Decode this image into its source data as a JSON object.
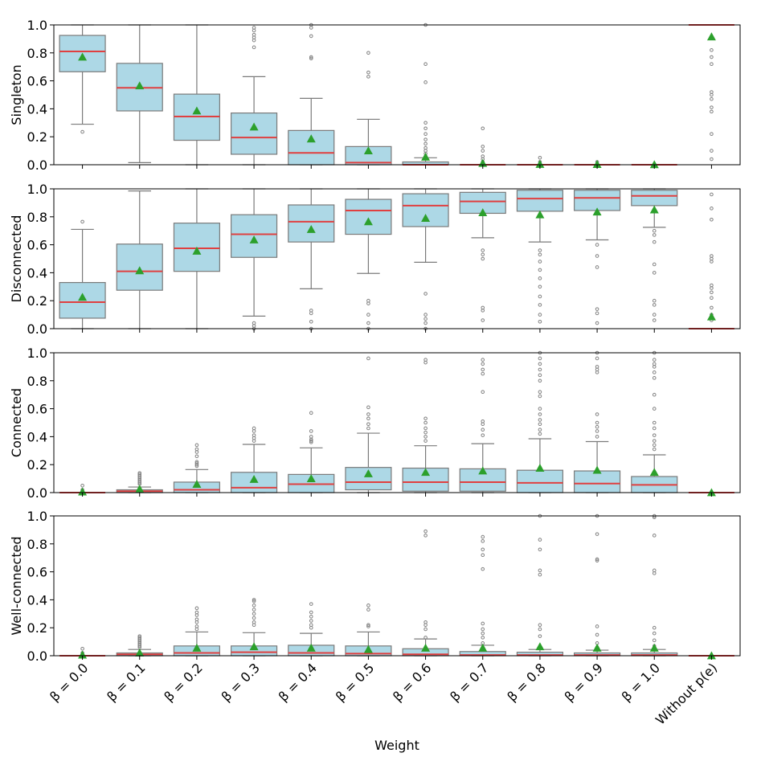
{
  "chart_data": {
    "type": "box",
    "xlabel": "Weight",
    "categories": [
      "β = 0.0",
      "β = 0.1",
      "β = 0.2",
      "β = 0.3",
      "β = 0.4",
      "β = 0.5",
      "β = 0.6",
      "β = 0.7",
      "β = 0.8",
      "β = 0.9",
      "β = 1.0",
      "Without p(e)"
    ],
    "ylim": [
      0,
      1
    ],
    "yticks": [
      "0.0",
      "0.2",
      "0.4",
      "0.6",
      "0.8",
      "1.0"
    ],
    "colors": {
      "box_fill": "#add8e6",
      "box_edge": "#7a7a7a",
      "median": "#e04040",
      "mean_marker": "#2ca02c",
      "outlier": "#808080"
    },
    "panels": [
      {
        "ylabel": "Singleton",
        "boxes": [
          {
            "q1": 0.665,
            "median": 0.81,
            "q3": 0.925,
            "wlo": 0.29,
            "whi": 1.0,
            "mean": 0.77,
            "outliers": [
              0.235
            ]
          },
          {
            "q1": 0.385,
            "median": 0.55,
            "q3": 0.725,
            "wlo": 0.015,
            "whi": 1.0,
            "mean": 0.565,
            "outliers": []
          },
          {
            "q1": 0.175,
            "median": 0.345,
            "q3": 0.505,
            "wlo": 0.0,
            "whi": 1.0,
            "mean": 0.385,
            "outliers": []
          },
          {
            "q1": 0.075,
            "median": 0.195,
            "q3": 0.37,
            "wlo": 0.0,
            "whi": 0.63,
            "mean": 0.27,
            "outliers": [
              0.84,
              0.89,
              0.91,
              0.93,
              0.96,
              0.98
            ]
          },
          {
            "q1": 0.0,
            "median": 0.085,
            "q3": 0.245,
            "wlo": 0.0,
            "whi": 0.475,
            "mean": 0.185,
            "outliers": [
              0.76,
              0.77,
              0.92,
              0.98,
              1.0
            ]
          },
          {
            "q1": 0.0,
            "median": 0.015,
            "q3": 0.13,
            "wlo": 0.0,
            "whi": 0.325,
            "mean": 0.1,
            "outliers": [
              0.63,
              0.66,
              0.8
            ]
          },
          {
            "q1": 0.0,
            "median": 0.0,
            "q3": 0.02,
            "wlo": 0.0,
            "whi": 0.05,
            "mean": 0.055,
            "outliers": [
              0.06,
              0.08,
              0.1,
              0.12,
              0.15,
              0.18,
              0.22,
              0.26,
              0.3,
              0.59,
              0.72,
              1.0
            ]
          },
          {
            "q1": 0.0,
            "median": 0.0,
            "q3": 0.0,
            "wlo": 0.0,
            "whi": 0.0,
            "mean": 0.01,
            "outliers": [
              0.02,
              0.04,
              0.06,
              0.1,
              0.13,
              0.26
            ]
          },
          {
            "q1": 0.0,
            "median": 0.0,
            "q3": 0.0,
            "wlo": 0.0,
            "whi": 0.0,
            "mean": 0.003,
            "outliers": [
              0.02,
              0.05
            ]
          },
          {
            "q1": 0.0,
            "median": 0.0,
            "q3": 0.0,
            "wlo": 0.0,
            "whi": 0.0,
            "mean": 0.002,
            "outliers": [
              0.02
            ]
          },
          {
            "q1": 0.0,
            "median": 0.0,
            "q3": 0.0,
            "wlo": 0.0,
            "whi": 0.0,
            "mean": 0.001,
            "outliers": []
          },
          {
            "q1": 1.0,
            "median": 1.0,
            "q3": 1.0,
            "wlo": 1.0,
            "whi": 1.0,
            "mean": 0.915,
            "outliers": [
              0.04,
              0.1,
              0.22,
              0.38,
              0.41,
              0.47,
              0.5,
              0.52,
              0.72,
              0.77,
              0.82
            ]
          }
        ]
      },
      {
        "ylabel": "Disconnected",
        "boxes": [
          {
            "q1": 0.075,
            "median": 0.19,
            "q3": 0.33,
            "wlo": 0.0,
            "whi": 0.71,
            "mean": 0.225,
            "outliers": [
              0.765
            ]
          },
          {
            "q1": 0.275,
            "median": 0.41,
            "q3": 0.605,
            "wlo": 0.0,
            "whi": 0.985,
            "mean": 0.415,
            "outliers": []
          },
          {
            "q1": 0.41,
            "median": 0.575,
            "q3": 0.755,
            "wlo": 0.0,
            "whi": 1.0,
            "mean": 0.555,
            "outliers": []
          },
          {
            "q1": 0.51,
            "median": 0.675,
            "q3": 0.815,
            "wlo": 0.09,
            "whi": 1.0,
            "mean": 0.635,
            "outliers": [
              0.0,
              0.02,
              0.04
            ]
          },
          {
            "q1": 0.62,
            "median": 0.765,
            "q3": 0.885,
            "wlo": 0.285,
            "whi": 1.0,
            "mean": 0.71,
            "outliers": [
              0.0,
              0.05,
              0.11,
              0.13
            ]
          },
          {
            "q1": 0.675,
            "median": 0.845,
            "q3": 0.925,
            "wlo": 0.395,
            "whi": 1.0,
            "mean": 0.765,
            "outliers": [
              0.0,
              0.04,
              0.1,
              0.18,
              0.2
            ]
          },
          {
            "q1": 0.73,
            "median": 0.88,
            "q3": 0.965,
            "wlo": 0.475,
            "whi": 1.0,
            "mean": 0.79,
            "outliers": [
              0.0,
              0.04,
              0.07,
              0.1,
              0.25
            ]
          },
          {
            "q1": 0.825,
            "median": 0.91,
            "q3": 0.975,
            "wlo": 0.65,
            "whi": 1.0,
            "mean": 0.83,
            "outliers": [
              0.06,
              0.13,
              0.15,
              0.5,
              0.53,
              0.56
            ]
          },
          {
            "q1": 0.84,
            "median": 0.93,
            "q3": 0.99,
            "wlo": 0.62,
            "whi": 1.0,
            "mean": 0.815,
            "outliers": [
              0.05,
              0.1,
              0.17,
              0.23,
              0.3,
              0.36,
              0.42,
              0.48,
              0.53,
              0.56
            ]
          },
          {
            "q1": 0.845,
            "median": 0.935,
            "q3": 0.99,
            "wlo": 0.635,
            "whi": 1.0,
            "mean": 0.835,
            "outliers": [
              0.04,
              0.11,
              0.14,
              0.44,
              0.52,
              0.6
            ]
          },
          {
            "q1": 0.88,
            "median": 0.95,
            "q3": 0.99,
            "wlo": 0.725,
            "whi": 1.0,
            "mean": 0.85,
            "outliers": [
              0.06,
              0.1,
              0.17,
              0.2,
              0.4,
              0.46,
              0.62,
              0.67,
              0.7
            ]
          },
          {
            "q1": 0.0,
            "median": 0.0,
            "q3": 0.0,
            "wlo": 0.0,
            "whi": 0.0,
            "mean": 0.085,
            "outliers": [
              0.06,
              0.1,
              0.15,
              0.22,
              0.26,
              0.29,
              0.31,
              0.48,
              0.5,
              0.52,
              0.78,
              0.86,
              0.96
            ]
          }
        ]
      },
      {
        "ylabel": "Connected",
        "boxes": [
          {
            "q1": 0.0,
            "median": 0.0,
            "q3": 0.0,
            "wlo": 0.0,
            "whi": 0.0,
            "mean": 0.005,
            "outliers": [
              0.02,
              0.05
            ]
          },
          {
            "q1": 0.0,
            "median": 0.01,
            "q3": 0.02,
            "wlo": 0.0,
            "whi": 0.04,
            "mean": 0.025,
            "outliers": [
              0.06,
              0.07,
              0.08,
              0.09,
              0.1,
              0.11,
              0.12,
              0.13,
              0.14
            ]
          },
          {
            "q1": 0.0,
            "median": 0.02,
            "q3": 0.075,
            "wlo": 0.0,
            "whi": 0.165,
            "mean": 0.06,
            "outliers": [
              0.19,
              0.2,
              0.21,
              0.22,
              0.26,
              0.29,
              0.31,
              0.34
            ]
          },
          {
            "q1": 0.0,
            "median": 0.035,
            "q3": 0.145,
            "wlo": 0.0,
            "whi": 0.345,
            "mean": 0.095,
            "outliers": [
              0.37,
              0.39,
              0.41,
              0.44,
              0.46
            ]
          },
          {
            "q1": 0.0,
            "median": 0.06,
            "q3": 0.13,
            "wlo": 0.0,
            "whi": 0.32,
            "mean": 0.1,
            "outliers": [
              0.36,
              0.37,
              0.38,
              0.4,
              0.44,
              0.57
            ]
          },
          {
            "q1": 0.02,
            "median": 0.075,
            "q3": 0.18,
            "wlo": 0.0,
            "whi": 0.425,
            "mean": 0.135,
            "outliers": [
              0.46,
              0.49,
              0.53,
              0.56,
              0.61,
              0.96
            ]
          },
          {
            "q1": 0.01,
            "median": 0.075,
            "q3": 0.175,
            "wlo": 0.0,
            "whi": 0.335,
            "mean": 0.145,
            "outliers": [
              0.37,
              0.4,
              0.43,
              0.46,
              0.5,
              0.53,
              0.93,
              0.95
            ]
          },
          {
            "q1": 0.01,
            "median": 0.075,
            "q3": 0.17,
            "wlo": 0.0,
            "whi": 0.35,
            "mean": 0.155,
            "outliers": [
              0.41,
              0.45,
              0.49,
              0.51,
              0.72,
              0.85,
              0.88,
              0.92,
              0.95
            ]
          },
          {
            "q1": 0.0,
            "median": 0.07,
            "q3": 0.16,
            "wlo": 0.0,
            "whi": 0.385,
            "mean": 0.175,
            "outliers": [
              0.42,
              0.45,
              0.49,
              0.52,
              0.56,
              0.6,
              0.69,
              0.72,
              0.8,
              0.84,
              0.88,
              0.92,
              0.96,
              1.0
            ]
          },
          {
            "q1": 0.0,
            "median": 0.065,
            "q3": 0.155,
            "wlo": 0.0,
            "whi": 0.365,
            "mean": 0.16,
            "outliers": [
              0.4,
              0.44,
              0.47,
              0.5,
              0.56,
              0.86,
              0.88,
              0.9,
              0.96,
              1.0
            ]
          },
          {
            "q1": 0.0,
            "median": 0.055,
            "q3": 0.115,
            "wlo": 0.0,
            "whi": 0.27,
            "mean": 0.145,
            "outliers": [
              0.31,
              0.34,
              0.37,
              0.41,
              0.46,
              0.5,
              0.6,
              0.7,
              0.82,
              0.86,
              0.9,
              0.92,
              0.95,
              1.0
            ]
          },
          {
            "q1": 0.0,
            "median": 0.0,
            "q3": 0.0,
            "wlo": 0.0,
            "whi": 0.0,
            "mean": 0.0,
            "outliers": []
          }
        ]
      },
      {
        "ylabel": "Well-connected",
        "boxes": [
          {
            "q1": 0.0,
            "median": 0.0,
            "q3": 0.0,
            "wlo": 0.0,
            "whi": 0.0,
            "mean": 0.005,
            "outliers": [
              0.02,
              0.05
            ]
          },
          {
            "q1": 0.0,
            "median": 0.01,
            "q3": 0.02,
            "wlo": 0.0,
            "whi": 0.045,
            "mean": 0.02,
            "outliers": [
              0.06,
              0.07,
              0.08,
              0.09,
              0.1,
              0.11,
              0.12,
              0.13,
              0.14
            ]
          },
          {
            "q1": 0.0,
            "median": 0.02,
            "q3": 0.07,
            "wlo": 0.0,
            "whi": 0.17,
            "mean": 0.055,
            "outliers": [
              0.19,
              0.21,
              0.24,
              0.26,
              0.29,
              0.31,
              0.34
            ]
          },
          {
            "q1": 0.0,
            "median": 0.025,
            "q3": 0.07,
            "wlo": 0.0,
            "whi": 0.165,
            "mean": 0.065,
            "outliers": [
              0.22,
              0.24,
              0.27,
              0.3,
              0.33,
              0.36,
              0.39,
              0.4
            ]
          },
          {
            "q1": 0.0,
            "median": 0.02,
            "q3": 0.075,
            "wlo": 0.0,
            "whi": 0.16,
            "mean": 0.055,
            "outliers": [
              0.2,
              0.22,
              0.25,
              0.28,
              0.31,
              0.37
            ]
          },
          {
            "q1": 0.0,
            "median": 0.015,
            "q3": 0.07,
            "wlo": 0.0,
            "whi": 0.17,
            "mean": 0.045,
            "outliers": [
              0.21,
              0.22,
              0.33,
              0.36
            ]
          },
          {
            "q1": 0.0,
            "median": 0.01,
            "q3": 0.05,
            "wlo": 0.0,
            "whi": 0.12,
            "mean": 0.055,
            "outliers": [
              0.13,
              0.19,
              0.22,
              0.24,
              0.86,
              0.89
            ]
          },
          {
            "q1": 0.0,
            "median": 0.005,
            "q3": 0.03,
            "wlo": 0.0,
            "whi": 0.075,
            "mean": 0.055,
            "outliers": [
              0.09,
              0.13,
              0.16,
              0.19,
              0.23,
              0.62,
              0.72,
              0.76,
              0.82,
              0.85
            ]
          },
          {
            "q1": 0.0,
            "median": 0.005,
            "q3": 0.025,
            "wlo": 0.0,
            "whi": 0.045,
            "mean": 0.065,
            "outliers": [
              0.06,
              0.14,
              0.19,
              0.22,
              0.58,
              0.61,
              0.76,
              0.83,
              1.0
            ]
          },
          {
            "q1": 0.0,
            "median": 0.005,
            "q3": 0.02,
            "wlo": 0.0,
            "whi": 0.04,
            "mean": 0.055,
            "outliers": [
              0.06,
              0.09,
              0.15,
              0.21,
              0.68,
              0.69,
              0.87,
              1.0
            ]
          },
          {
            "q1": 0.0,
            "median": 0.005,
            "q3": 0.02,
            "wlo": 0.0,
            "whi": 0.045,
            "mean": 0.055,
            "outliers": [
              0.07,
              0.11,
              0.16,
              0.2,
              0.59,
              0.61,
              0.86,
              0.99,
              1.0
            ]
          },
          {
            "q1": 0.0,
            "median": 0.0,
            "q3": 0.0,
            "wlo": 0.0,
            "whi": 0.0,
            "mean": 0.0,
            "outliers": []
          }
        ]
      }
    ]
  }
}
